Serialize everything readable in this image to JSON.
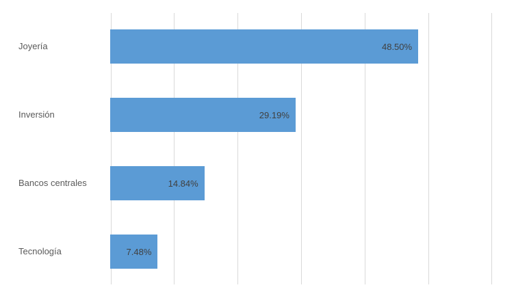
{
  "chart_data": {
    "type": "bar",
    "orientation": "horizontal",
    "title": "",
    "xlabel": "",
    "ylabel": "",
    "categories": [
      "Joyería",
      "Inversión",
      "Bancos centrales",
      "Tecnología"
    ],
    "values": [
      48.5,
      29.19,
      14.84,
      7.48
    ],
    "value_labels": [
      "48.50%",
      "29.19%",
      "14.84%",
      "7.48%"
    ],
    "xlim": [
      0,
      60
    ],
    "gridline_step": 10,
    "grid": "vertical-only",
    "legend": "none",
    "axis_tick_labels": "none",
    "bar_color": "#5b9bd5",
    "category_label_color": "#595959",
    "value_label_color": "#404040",
    "gridline_color": "#d9d9d9",
    "background_color": "#ffffff"
  }
}
